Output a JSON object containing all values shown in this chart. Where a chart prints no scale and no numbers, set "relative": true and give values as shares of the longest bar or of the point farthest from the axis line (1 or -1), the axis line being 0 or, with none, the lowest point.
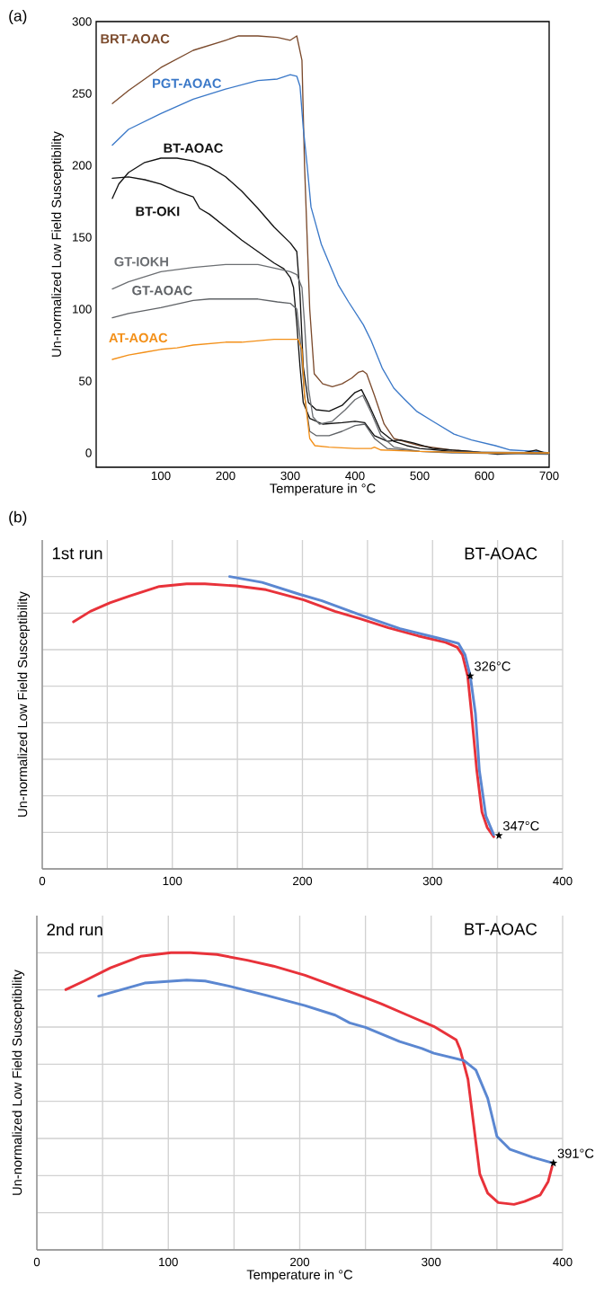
{
  "chart_data": [
    {
      "type": "line",
      "title": "(a)",
      "ylabel": "Un-normalized Low Field Susceptibility",
      "xlabel": "Temperature in °C",
      "xlim": [
        0,
        700
      ],
      "ylim": [
        -10,
        300
      ],
      "xticks": [
        100,
        200,
        300,
        400,
        500,
        600,
        700
      ],
      "yticks": [
        0,
        50,
        100,
        150,
        200,
        250,
        300
      ],
      "grid": false,
      "series": [
        {
          "name": "BRT-AOAC",
          "color": "#7b4a2c",
          "x": [
            25,
            50,
            100,
            150,
            200,
            220,
            250,
            280,
            300,
            310,
            318,
            322,
            330,
            337,
            350,
            365,
            380,
            395,
            405,
            412,
            418,
            430,
            445,
            460,
            500,
            550,
            600,
            650,
            700
          ],
          "values": [
            243,
            252,
            268,
            280,
            287,
            290,
            290,
            289,
            287,
            290,
            273,
            200,
            100,
            55,
            48,
            46,
            48,
            52,
            56,
            57,
            55,
            40,
            20,
            10,
            5,
            2,
            0,
            0,
            0
          ]
        },
        {
          "name": "PGT-AOAC",
          "color": "#3a78c8",
          "x": [
            25,
            50,
            100,
            150,
            200,
            250,
            280,
            300,
            310,
            315,
            320,
            326,
            332,
            340,
            348,
            360,
            374,
            390,
            413,
            425,
            442,
            460,
            475,
            495,
            520,
            553,
            580,
            617,
            640,
            680,
            700
          ],
          "values": [
            214,
            225,
            236,
            246,
            253,
            259,
            260,
            263,
            262,
            255,
            226,
            200,
            171,
            158,
            145,
            132,
            117,
            105,
            89,
            78,
            59,
            45,
            38,
            29,
            22,
            13,
            9,
            5,
            2,
            1,
            0
          ]
        },
        {
          "name": "BT-AOAC",
          "color": "#111111",
          "x": [
            25,
            35,
            50,
            75,
            100,
            125,
            150,
            175,
            200,
            225,
            250,
            275,
            300,
            310,
            315,
            320,
            328,
            340,
            360,
            380,
            400,
            410,
            420,
            440,
            460,
            480,
            500,
            550,
            600,
            700
          ],
          "values": [
            177,
            187,
            195,
            202,
            205,
            205,
            203,
            199,
            192,
            182,
            170,
            157,
            146,
            140,
            110,
            60,
            35,
            30,
            29,
            33,
            42,
            44,
            35,
            15,
            8,
            5,
            3,
            1,
            0,
            0
          ]
        },
        {
          "name": "BT-OKI",
          "color": "#111111",
          "x": [
            25,
            50,
            75,
            100,
            125,
            150,
            160,
            175,
            200,
            225,
            250,
            275,
            290,
            300,
            305,
            310,
            315,
            320,
            330,
            350,
            380,
            400,
            415,
            430,
            450,
            470,
            490,
            520,
            550,
            580,
            620,
            660,
            680,
            700
          ],
          "values": [
            191,
            192,
            190,
            187,
            182,
            178,
            170,
            166,
            157,
            148,
            140,
            132,
            128,
            122,
            115,
            90,
            60,
            35,
            24,
            20,
            21,
            22,
            21,
            12,
            8,
            9,
            7,
            3,
            2,
            1,
            -1,
            0,
            2,
            -1
          ]
        },
        {
          "name": "GT-IOKH",
          "color": "#6b6e72",
          "x": [
            25,
            50,
            100,
            150,
            200,
            250,
            280,
            300,
            310,
            318,
            322,
            328,
            335,
            345,
            365,
            385,
            400,
            412,
            425,
            440,
            460,
            500,
            550,
            700
          ],
          "values": [
            114,
            119,
            126,
            129,
            131,
            131,
            128,
            126,
            124,
            115,
            90,
            45,
            25,
            20,
            22,
            30,
            37,
            40,
            28,
            12,
            4,
            1,
            0,
            -1
          ]
        },
        {
          "name": "GT-AOAC",
          "color": "#5f6266",
          "x": [
            25,
            50,
            100,
            150,
            175,
            200,
            250,
            280,
            300,
            310,
            315,
            322,
            330,
            340,
            360,
            380,
            400,
            415,
            430,
            450,
            500,
            700
          ],
          "values": [
            94,
            97,
            101,
            106,
            107,
            107,
            107,
            105,
            104,
            100,
            80,
            40,
            15,
            12,
            12,
            15,
            19,
            20,
            10,
            3,
            1,
            0
          ]
        },
        {
          "name": "AT-AOAC",
          "color": "#f39019",
          "x": [
            25,
            50,
            75,
            100,
            125,
            150,
            175,
            200,
            225,
            250,
            275,
            300,
            312,
            318,
            322,
            330,
            338,
            360,
            400,
            425,
            430,
            440,
            500,
            600,
            700
          ],
          "values": [
            65,
            68,
            70,
            72,
            73,
            75,
            76,
            77,
            77,
            78,
            79,
            79,
            79,
            72,
            40,
            10,
            5,
            4,
            3,
            3,
            4,
            2,
            1,
            0,
            0
          ]
        }
      ]
    },
    {
      "type": "line",
      "title": "(b)",
      "ylabel": "Un-normalized Low Field Susceptibility",
      "relative": true,
      "xlim": [
        0,
        400
      ],
      "xticks": [
        0,
        {
          "value": 50,
          "label": null
        },
        100,
        {
          "value": 150,
          "label": null
        },
        200,
        {
          "value": 250,
          "label": null
        },
        300,
        {
          "value": 350,
          "label": null
        },
        400
      ],
      "grid": true,
      "annotations": [
        "1st run",
        "BT-AOAC",
        {
          "text": "326°C",
          "x": 329,
          "y": 0.66
        },
        {
          "text": "347°C",
          "x": 351,
          "y": 0.114
        }
      ],
      "series": [
        {
          "color": "#e8323a",
          "x": [
            24,
            37,
            52,
            67,
            90,
            111,
            125,
            149,
            172,
            201,
            225,
            245,
            266,
            289,
            310,
            319,
            323,
            327,
            330,
            334,
            338,
            342,
            347
          ],
          "values": [
            0.845,
            0.881,
            0.91,
            0.933,
            0.966,
            0.975,
            0.975,
            0.968,
            0.955,
            0.92,
            0.881,
            0.855,
            0.825,
            0.797,
            0.775,
            0.758,
            0.732,
            0.66,
            0.53,
            0.337,
            0.194,
            0.142,
            0.11
          ]
        },
        {
          "color": "#5b87d1",
          "x": [
            144,
            169,
            198,
            215,
            245,
            275,
            304,
            320,
            325,
            329,
            333,
            336,
            341,
            347
          ],
          "values": [
            1.0,
            0.98,
            0.939,
            0.917,
            0.868,
            0.822,
            0.79,
            0.771,
            0.732,
            0.66,
            0.531,
            0.337,
            0.181,
            0.117
          ]
        }
      ]
    },
    {
      "type": "line",
      "ylabel": "Un-normalized Low Field Susceptibility",
      "xlabel": "Temperature in °C",
      "relative": true,
      "xlim": [
        0,
        400
      ],
      "xticks": [
        0,
        {
          "value": 50,
          "label": null
        },
        100,
        {
          "value": 150,
          "label": null
        },
        200,
        {
          "value": 250,
          "label": null
        },
        300,
        {
          "value": 350,
          "label": null
        },
        400
      ],
      "grid": true,
      "annotations": [
        "2nd run",
        "BT-AOAC",
        {
          "text": "391°C",
          "x": 393,
          "y": 0.292
        }
      ],
      "series": [
        {
          "color": "#e8323a",
          "x": [
            22,
            36,
            56,
            79,
            102,
            117,
            137,
            160,
            180,
            204,
            224,
            247,
            262,
            282,
            302,
            319,
            322,
            328,
            332,
            337,
            343,
            351,
            363,
            371,
            383,
            389,
            392
          ],
          "values": [
            0.876,
            0.905,
            0.949,
            0.988,
            1.0,
            1.0,
            0.994,
            0.975,
            0.955,
            0.924,
            0.892,
            0.854,
            0.828,
            0.79,
            0.752,
            0.707,
            0.675,
            0.574,
            0.433,
            0.255,
            0.191,
            0.159,
            0.153,
            0.163,
            0.185,
            0.23,
            0.281
          ]
        },
        {
          "color": "#5b87d1",
          "x": [
            47,
            59,
            82,
            114,
            128,
            146,
            175,
            204,
            227,
            238,
            250,
            276,
            293,
            302,
            325,
            334,
            343,
            350,
            360,
            377,
            392
          ],
          "values": [
            0.854,
            0.869,
            0.898,
            0.908,
            0.905,
            0.888,
            0.856,
            0.822,
            0.79,
            0.764,
            0.749,
            0.701,
            0.678,
            0.662,
            0.637,
            0.605,
            0.51,
            0.382,
            0.338,
            0.312,
            0.293
          ]
        }
      ]
    }
  ]
}
